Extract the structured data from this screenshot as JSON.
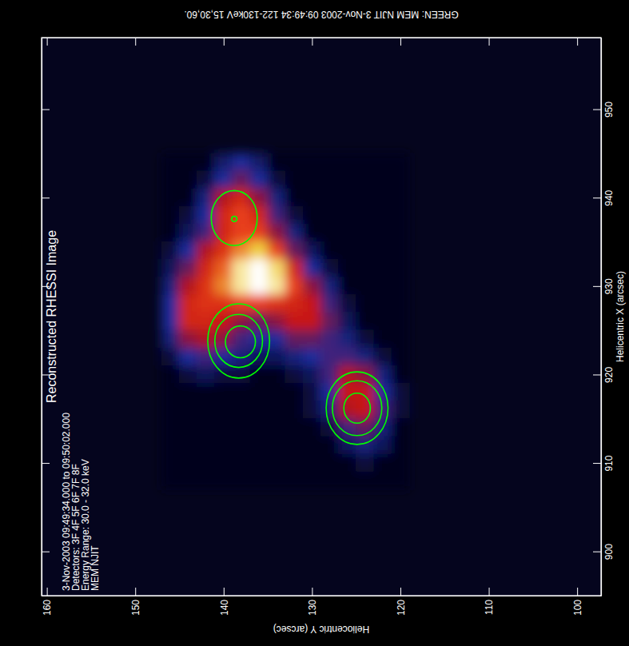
{
  "chart_data": {
    "type": "heatmap",
    "title": "Reconstructed RHESSI Image",
    "caption": "GREEN: MEM NJIT 3-Nov-2003 09:49:34 122-130keV 15,30,60.",
    "annotations": [
      "3-Nov-2003 09:49:34.000 to 09:50:02.000",
      "Detectors: 3F 4F 5F 6F 7F 8F",
      "Energy Range: 30.0 - 32.0 keV",
      "MEM NJIT"
    ],
    "x_label": "Helicentric X (arcsec)",
    "y_label": "Heliocentric Y (arcsec)",
    "xlim": [
      895.0,
      958.1
    ],
    "xticks": [
      900,
      910,
      920,
      930,
      940,
      950
    ],
    "ylim": [
      97.3,
      160.6
    ],
    "yticks": [
      100,
      110,
      120,
      130,
      140,
      150,
      160
    ],
    "zlim": [
      0,
      1
    ],
    "heatmap": {
      "x": [
        944,
        942,
        940,
        938,
        936,
        934,
        932,
        930,
        928,
        926,
        924,
        922,
        920,
        918,
        916,
        914,
        912,
        910,
        908
      ],
      "y": [
        146,
        144,
        142,
        140,
        138,
        136,
        134,
        132,
        130,
        128,
        126,
        124,
        122,
        120
      ],
      "z": [
        [
          0,
          0,
          0,
          0.12,
          0.2,
          0.12,
          0,
          0,
          0,
          0,
          0,
          0,
          0,
          0
        ],
        [
          0,
          0,
          0.05,
          0.2,
          0.3,
          0.2,
          0.05,
          0,
          0,
          0,
          0,
          0,
          0,
          0
        ],
        [
          0,
          0,
          0.15,
          0.4,
          0.5,
          0.35,
          0.15,
          0,
          0,
          0,
          0,
          0,
          0,
          0
        ],
        [
          0,
          0.05,
          0.2,
          0.5,
          0.6,
          0.5,
          0.25,
          0.05,
          0,
          0,
          0,
          0,
          0,
          0
        ],
        [
          0,
          0.1,
          0.25,
          0.5,
          0.6,
          0.6,
          0.35,
          0.15,
          0,
          0,
          0,
          0,
          0,
          0
        ],
        [
          0.05,
          0.2,
          0.4,
          0.55,
          0.7,
          0.8,
          0.6,
          0.3,
          0.1,
          0,
          0,
          0,
          0,
          0
        ],
        [
          0.1,
          0.3,
          0.5,
          0.65,
          0.9,
          1.0,
          0.85,
          0.5,
          0.2,
          0.05,
          0,
          0,
          0,
          0
        ],
        [
          0.15,
          0.4,
          0.55,
          0.7,
          0.9,
          1.0,
          0.9,
          0.6,
          0.35,
          0.15,
          0,
          0,
          0,
          0
        ],
        [
          0.2,
          0.5,
          0.55,
          0.55,
          0.6,
          0.6,
          0.55,
          0.5,
          0.45,
          0.25,
          0.05,
          0,
          0,
          0
        ],
        [
          0.2,
          0.5,
          0.5,
          0.45,
          0.35,
          0.3,
          0.35,
          0.45,
          0.45,
          0.3,
          0.1,
          0,
          0,
          0
        ],
        [
          0.15,
          0.35,
          0.4,
          0.35,
          0.25,
          0.2,
          0.2,
          0.3,
          0.3,
          0.25,
          0.15,
          0.05,
          0,
          0
        ],
        [
          0.05,
          0.2,
          0.25,
          0.2,
          0.15,
          0.1,
          0.1,
          0.15,
          0.2,
          0.25,
          0.25,
          0.15,
          0.05,
          0
        ],
        [
          0,
          0.05,
          0.1,
          0.05,
          0.05,
          0,
          0,
          0.05,
          0.1,
          0.25,
          0.4,
          0.35,
          0.15,
          0
        ],
        [
          0,
          0,
          0,
          0,
          0,
          0,
          0,
          0,
          0.05,
          0.2,
          0.45,
          0.45,
          0.2,
          0.05
        ],
        [
          0,
          0,
          0,
          0,
          0,
          0,
          0,
          0,
          0.05,
          0.15,
          0.4,
          0.45,
          0.25,
          0.05
        ],
        [
          0,
          0,
          0,
          0,
          0,
          0,
          0,
          0,
          0,
          0.05,
          0.25,
          0.3,
          0.15,
          0
        ],
        [
          0,
          0,
          0,
          0,
          0,
          0,
          0,
          0,
          0,
          0,
          0.1,
          0.15,
          0.1,
          0
        ],
        [
          0,
          0,
          0,
          0,
          0,
          0,
          0,
          0,
          0,
          0,
          0,
          0.05,
          0,
          0
        ],
        [
          0,
          0,
          0,
          0,
          0,
          0,
          0,
          0,
          0,
          0,
          0,
          0,
          0,
          0
        ]
      ]
    },
    "contours": [
      {
        "x": 937.7,
        "y": 138.8,
        "x_radius": 3.1,
        "y_radius": 2.6
      },
      {
        "x": 937.6,
        "y": 138.8,
        "x_radius": 0.3,
        "y_radius": 0.3
      },
      {
        "x": 923.8,
        "y": 138.3,
        "x_radius": 4.2,
        "y_radius": 3.5
      },
      {
        "x": 923.8,
        "y": 138.3,
        "x_radius": 3.0,
        "y_radius": 2.7
      },
      {
        "x": 923.7,
        "y": 138.1,
        "x_radius": 1.8,
        "y_radius": 1.7
      },
      {
        "x": 916.2,
        "y": 124.9,
        "x_radius": 4.1,
        "y_radius": 3.5
      },
      {
        "x": 916.2,
        "y": 124.9,
        "x_radius": 3.1,
        "y_radius": 2.8
      },
      {
        "x": 916.2,
        "y": 124.9,
        "x_radius": 1.7,
        "y_radius": 1.5
      }
    ]
  }
}
